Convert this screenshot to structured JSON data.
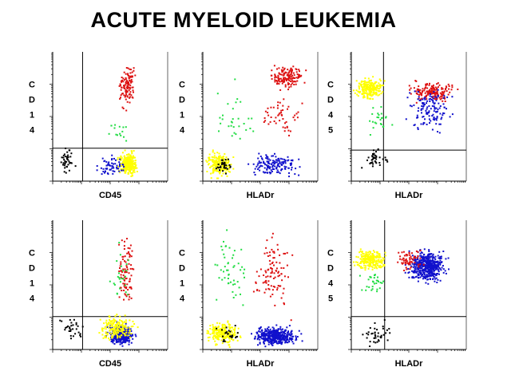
{
  "page": {
    "title": "ACUTE MYELOID LEUKEMIA"
  },
  "colors": {
    "red": "#dd1111",
    "blue": "#1111cc",
    "yellow": "#ffff00",
    "green": "#22dd44",
    "black": "#000000",
    "magenta": "#dd22dd",
    "cyan": "#22aadd"
  },
  "chart_data": [
    {
      "type": "scatter",
      "xlabel": "CD45",
      "ylabel": "CD14",
      "x_log": true,
      "y_log": true,
      "quadrant_gate": true,
      "populations": [
        {
          "color": "red",
          "count": 110,
          "x_range": [
            0.55,
            0.72
          ],
          "y_range": [
            0.55,
            0.95
          ]
        },
        {
          "color": "yellow",
          "count": 260,
          "x_range": [
            0.55,
            0.75
          ],
          "y_range": [
            0.03,
            0.25
          ]
        },
        {
          "color": "blue",
          "count": 60,
          "x_range": [
            0.35,
            0.68
          ],
          "y_range": [
            0.04,
            0.22
          ]
        },
        {
          "color": "black",
          "count": 40,
          "x_range": [
            0.02,
            0.22
          ],
          "y_range": [
            0.05,
            0.28
          ]
        },
        {
          "color": "green",
          "count": 15,
          "x_range": [
            0.4,
            0.7
          ],
          "y_range": [
            0.25,
            0.55
          ]
        }
      ]
    },
    {
      "type": "scatter",
      "xlabel": "HLADr",
      "ylabel": "CD14",
      "x_log": true,
      "y_log": true,
      "quadrant_gate": false,
      "populations": [
        {
          "color": "red",
          "count": 150,
          "x_range": [
            0.55,
            0.9
          ],
          "y_range": [
            0.7,
            0.92
          ]
        },
        {
          "color": "red",
          "count": 50,
          "x_range": [
            0.45,
            0.9
          ],
          "y_range": [
            0.3,
            0.7
          ]
        },
        {
          "color": "yellow",
          "count": 200,
          "x_range": [
            0.0,
            0.28
          ],
          "y_range": [
            0.02,
            0.25
          ]
        },
        {
          "color": "blue",
          "count": 150,
          "x_range": [
            0.35,
            0.9
          ],
          "y_range": [
            0.02,
            0.25
          ]
        },
        {
          "color": "black",
          "count": 30,
          "x_range": [
            0.05,
            0.3
          ],
          "y_range": [
            0.05,
            0.2
          ]
        },
        {
          "color": "green",
          "count": 30,
          "x_range": [
            0.02,
            0.5
          ],
          "y_range": [
            0.2,
            0.85
          ]
        }
      ]
    },
    {
      "type": "scatter",
      "xlabel": "HLADr",
      "ylabel": "CD45",
      "x_log": true,
      "y_log": true,
      "quadrant_gate": true,
      "populations": [
        {
          "color": "yellow",
          "count": 220,
          "x_range": [
            0.0,
            0.3
          ],
          "y_range": [
            0.62,
            0.82
          ]
        },
        {
          "color": "red",
          "count": 160,
          "x_range": [
            0.45,
            0.95
          ],
          "y_range": [
            0.6,
            0.8
          ]
        },
        {
          "color": "blue",
          "count": 130,
          "x_range": [
            0.4,
            0.95
          ],
          "y_range": [
            0.35,
            0.8
          ]
        },
        {
          "color": "green",
          "count": 25,
          "x_range": [
            0.1,
            0.4
          ],
          "y_range": [
            0.35,
            0.6
          ]
        },
        {
          "color": "black",
          "count": 40,
          "x_range": [
            0.05,
            0.35
          ],
          "y_range": [
            0.05,
            0.3
          ]
        }
      ]
    },
    {
      "type": "scatter",
      "xlabel": "CD45",
      "ylabel": "CD14",
      "x_log": true,
      "y_log": true,
      "quadrant_gate": true,
      "populations": [
        {
          "color": "red",
          "count": 90,
          "x_range": [
            0.55,
            0.72
          ],
          "y_range": [
            0.3,
            0.95
          ]
        },
        {
          "color": "blue",
          "count": 360,
          "x_range": [
            0.45,
            0.72
          ],
          "y_range": [
            0.02,
            0.22
          ]
        },
        {
          "color": "yellow",
          "count": 180,
          "x_range": [
            0.35,
            0.75
          ],
          "y_range": [
            0.05,
            0.3
          ]
        },
        {
          "color": "green",
          "count": 25,
          "x_range": [
            0.45,
            0.7
          ],
          "y_range": [
            0.3,
            0.9
          ]
        },
        {
          "color": "black",
          "count": 30,
          "x_range": [
            0.02,
            0.3
          ],
          "y_range": [
            0.05,
            0.3
          ]
        }
      ]
    },
    {
      "type": "scatter",
      "xlabel": "HLADr",
      "ylabel": "CD14",
      "x_log": true,
      "y_log": true,
      "quadrant_gate": false,
      "populations": [
        {
          "color": "red",
          "count": 100,
          "x_range": [
            0.4,
            0.8
          ],
          "y_range": [
            0.25,
            0.95
          ]
        },
        {
          "color": "blue",
          "count": 420,
          "x_range": [
            0.4,
            0.85
          ],
          "y_range": [
            0.02,
            0.2
          ]
        },
        {
          "color": "yellow",
          "count": 220,
          "x_range": [
            0.0,
            0.35
          ],
          "y_range": [
            0.02,
            0.25
          ]
        },
        {
          "color": "green",
          "count": 50,
          "x_range": [
            0.0,
            0.45
          ],
          "y_range": [
            0.2,
            0.95
          ]
        },
        {
          "color": "black",
          "count": 25,
          "x_range": [
            0.1,
            0.35
          ],
          "y_range": [
            0.05,
            0.2
          ]
        }
      ]
    },
    {
      "type": "scatter",
      "xlabel": "HLADr",
      "ylabel": "CD45",
      "x_log": true,
      "y_log": true,
      "quadrant_gate": true,
      "populations": [
        {
          "color": "yellow",
          "count": 220,
          "x_range": [
            0.0,
            0.32
          ],
          "y_range": [
            0.6,
            0.8
          ]
        },
        {
          "color": "blue",
          "count": 480,
          "x_range": [
            0.45,
            0.85
          ],
          "y_range": [
            0.5,
            0.8
          ]
        },
        {
          "color": "red",
          "count": 60,
          "x_range": [
            0.35,
            0.65
          ],
          "y_range": [
            0.6,
            0.8
          ]
        },
        {
          "color": "green",
          "count": 30,
          "x_range": [
            0.05,
            0.35
          ],
          "y_range": [
            0.4,
            0.65
          ]
        },
        {
          "color": "black",
          "count": 40,
          "x_range": [
            0.05,
            0.4
          ],
          "y_range": [
            0.0,
            0.25
          ]
        }
      ]
    }
  ]
}
